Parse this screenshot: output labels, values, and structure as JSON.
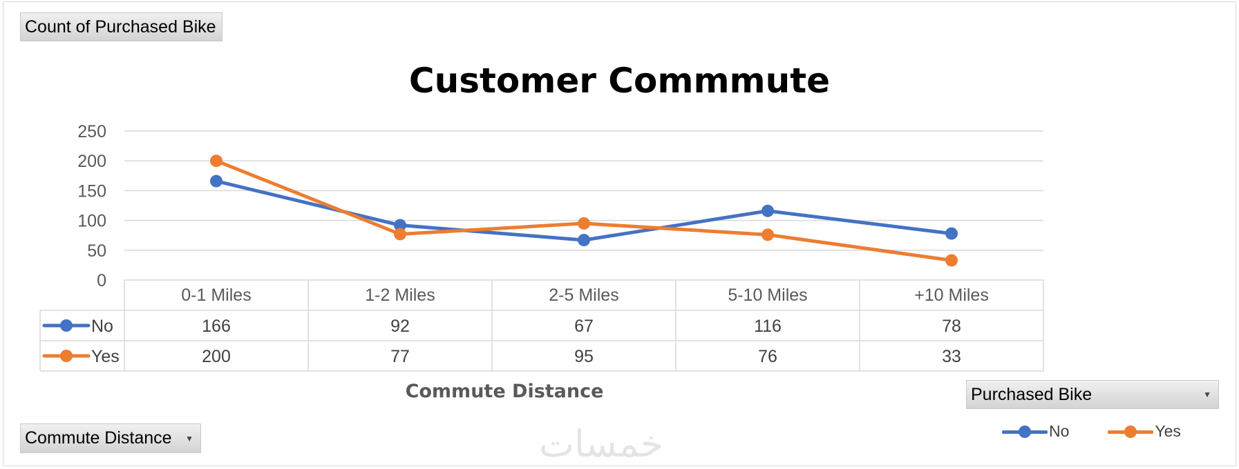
{
  "field_buttons": {
    "value": "Count of Purchased Bike",
    "axis": "Commute Distance",
    "legend": "Purchased Bike"
  },
  "watermark": "خمسات",
  "chart_data": {
    "type": "line",
    "title": "Customer Commmute",
    "xlabel": "Commute Distance",
    "ylabel": "",
    "ylim": [
      0,
      250
    ],
    "yticks": [
      0,
      50,
      100,
      150,
      200,
      250
    ],
    "grid": true,
    "legend_position": "bottom-right",
    "data_table": true,
    "categories": [
      "0-1 Miles",
      "1-2 Miles",
      "2-5 Miles",
      "5-10 Miles",
      "+10 Miles"
    ],
    "series": [
      {
        "name": "No",
        "color": "#4472c4",
        "values": [
          166,
          92,
          67,
          116,
          78
        ]
      },
      {
        "name": "Yes",
        "color": "#ed7d31",
        "values": [
          200,
          77,
          95,
          76,
          33
        ]
      }
    ]
  }
}
